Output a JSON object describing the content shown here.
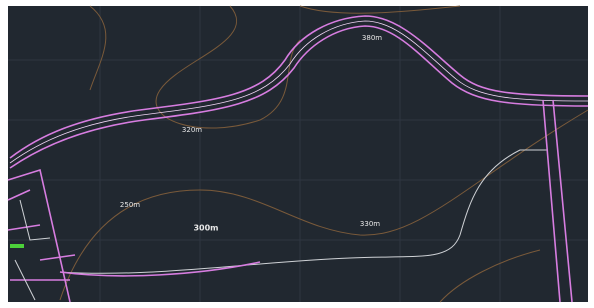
{
  "labels": [
    "380m",
    "320m",
    "250m",
    "300m",
    "330m"
  ]
}
